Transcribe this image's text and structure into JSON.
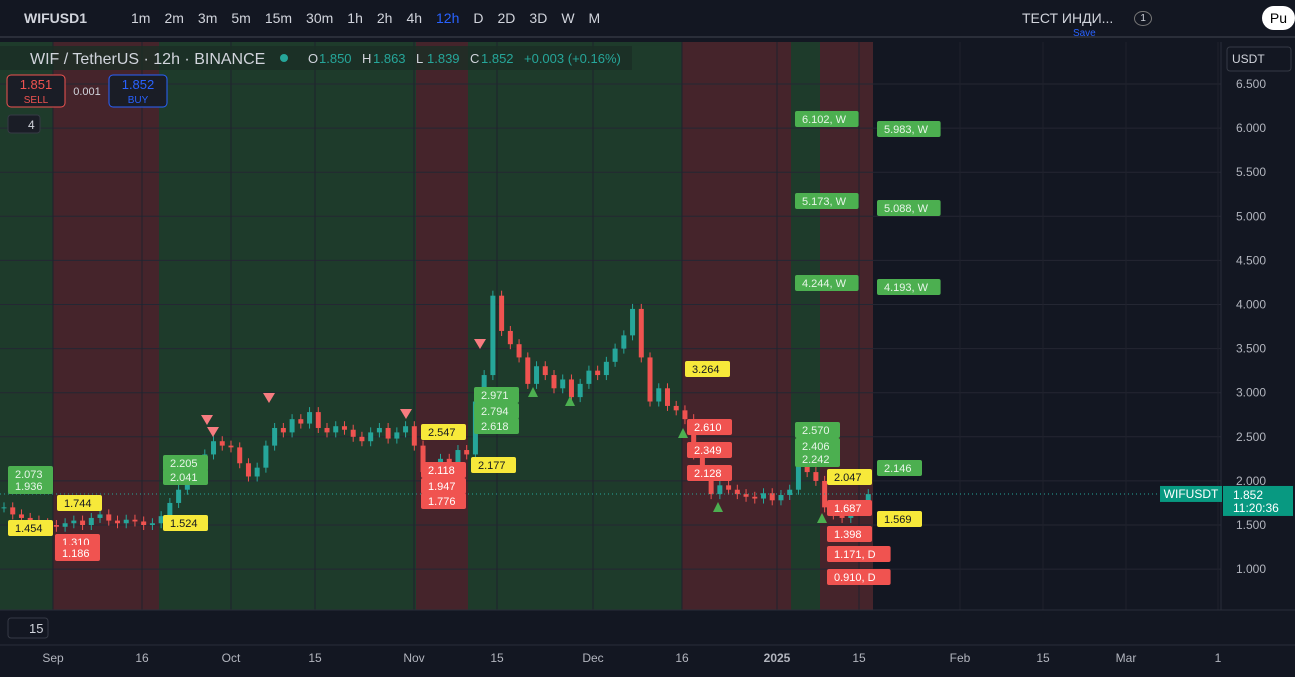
{
  "toolbar": {
    "symbol": "WIFUSD1",
    "intervals": [
      "1m",
      "2m",
      "3m",
      "5m",
      "15m",
      "30m",
      "1h",
      "2h",
      "4h",
      "12h",
      "D",
      "2D",
      "3D",
      "W",
      "M"
    ],
    "active_interval": "12h",
    "indicator": "ТЕСТ ИНДИ...",
    "save": "Save",
    "badge": "1",
    "publish": "Pu"
  },
  "legend": {
    "title": "WIF / TetherUS · 12h · BINANCE",
    "o_label": "O",
    "o": "1.850",
    "h_label": "H",
    "h": "1.863",
    "l_label": "L",
    "l": "1.839",
    "c_label": "C",
    "c": "1.852",
    "change": "+0.003 (+0.16%)",
    "sell_price": "1.851",
    "sell": "SELL",
    "spread": "0.001",
    "buy_price": "1.852",
    "buy": "BUY",
    "indicators_count": "4"
  },
  "price_axis": {
    "currency": "USDT",
    "ticks": [
      {
        "value": 6.5,
        "label": "6.500"
      },
      {
        "value": 6,
        "label": "6.000"
      },
      {
        "value": 5.5,
        "label": "5.500"
      },
      {
        "value": 5,
        "label": "5.000"
      },
      {
        "value": 4.5,
        "label": "4.500"
      },
      {
        "value": 4,
        "label": "4.000"
      },
      {
        "value": 3.5,
        "label": "3.500"
      },
      {
        "value": 3,
        "label": "3.000"
      },
      {
        "value": 2.5,
        "label": "2.500"
      },
      {
        "value": 2,
        "label": "2.000"
      },
      {
        "value": 1.5,
        "label": "1.500"
      },
      {
        "value": 1,
        "label": "1.000"
      }
    ],
    "last_price": {
      "value": 1.852,
      "label": "1.852"
    },
    "symbol_tag": "WIFUSDT",
    "countdown": "11:20:36"
  },
  "time_axis": {
    "labels": [
      "Sep",
      "16",
      "Oct",
      "15",
      "Nov",
      "15",
      "Dec",
      "16",
      "2025",
      "15",
      "Feb",
      "15",
      "Mar",
      "1"
    ]
  },
  "pane": {
    "collapsed_count": "15"
  },
  "candles": {
    "closes": [
      1.7,
      1.62,
      1.58,
      1.55,
      1.52,
      1.5,
      1.48,
      1.52,
      1.55,
      1.5,
      1.58,
      1.62,
      1.55,
      1.52,
      1.56,
      1.54,
      1.5,
      1.52,
      1.6,
      1.75,
      1.9,
      2.05,
      2.15,
      2.3,
      2.45,
      2.4,
      2.38,
      2.2,
      2.05,
      2.15,
      2.4,
      2.6,
      2.55,
      2.7,
      2.65,
      2.78,
      2.6,
      2.55,
      2.62,
      2.58,
      2.5,
      2.45,
      2.55,
      2.6,
      2.48,
      2.55,
      2.62,
      2.4,
      2.1,
      2.0,
      2.25,
      2.2,
      2.35,
      2.3,
      2.9,
      3.2,
      4.1,
      3.7,
      3.55,
      3.4,
      3.1,
      3.3,
      3.2,
      3.05,
      3.15,
      2.95,
      3.1,
      3.25,
      3.2,
      3.35,
      3.5,
      3.65,
      3.95,
      3.4,
      2.9,
      3.05,
      2.85,
      2.8,
      2.7,
      2.3,
      2.1,
      1.85,
      1.95,
      1.9,
      1.85,
      1.82,
      1.8,
      1.86,
      1.78,
      1.84,
      1.9,
      2.2,
      2.1,
      2.0,
      1.7,
      1.62,
      1.58,
      1.66,
      1.72,
      1.85
    ],
    "up_color": "#26a69a",
    "down_color": "#ef5350"
  },
  "level_labels": [
    {
      "text": "6.102, W",
      "color": "green"
    },
    {
      "text": "5.983, W",
      "color": "green"
    },
    {
      "text": "5.173, W",
      "color": "green"
    },
    {
      "text": "5.088, W",
      "color": "green"
    },
    {
      "text": "4.244, W",
      "color": "green"
    },
    {
      "text": "4.193, W",
      "color": "green"
    },
    {
      "text": "2.570",
      "color": "green"
    },
    {
      "text": "2.406",
      "color": "green"
    },
    {
      "text": "2.242",
      "color": "green"
    },
    {
      "text": "2.146",
      "color": "green"
    },
    {
      "text": "2.073",
      "color": "green"
    },
    {
      "text": "1.936",
      "color": "green"
    },
    {
      "text": "2.205",
      "color": "green"
    },
    {
      "text": "2.041",
      "color": "green"
    },
    {
      "text": "2.971",
      "color": "green"
    },
    {
      "text": "2.794",
      "color": "green"
    },
    {
      "text": "2.618",
      "color": "green"
    },
    {
      "text": "2.610",
      "color": "red"
    },
    {
      "text": "2.349",
      "color": "red"
    },
    {
      "text": "2.128",
      "color": "red"
    },
    {
      "text": "2.118",
      "color": "red"
    },
    {
      "text": "1.947",
      "color": "red"
    },
    {
      "text": "1.776",
      "color": "red"
    },
    {
      "text": "1.687",
      "color": "red"
    },
    {
      "text": "1.398",
      "color": "red"
    },
    {
      "text": "1.171, D",
      "color": "red"
    },
    {
      "text": "0.910, D",
      "color": "red"
    },
    {
      "text": "1.310",
      "color": "red"
    },
    {
      "text": "1.186",
      "color": "red"
    },
    {
      "text": "1.744",
      "color": "yellow"
    },
    {
      "text": "1.524",
      "color": "yellow"
    },
    {
      "text": "2.547",
      "color": "yellow"
    },
    {
      "text": "2.177",
      "color": "yellow"
    },
    {
      "text": "3.264",
      "color": "yellow"
    },
    {
      "text": "2.047",
      "color": "yellow"
    },
    {
      "text": "1.569",
      "color": "yellow"
    },
    {
      "text": "1.454",
      "color": "yellow"
    }
  ]
}
